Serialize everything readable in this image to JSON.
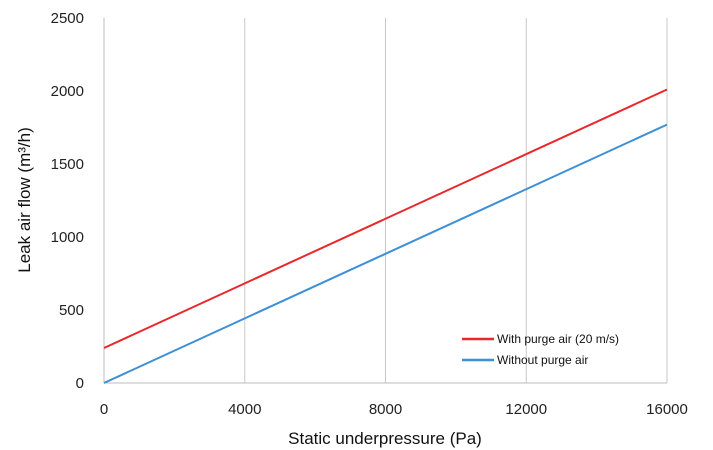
{
  "chart_data": {
    "type": "line",
    "xlabel": "Static underpressure (Pa)",
    "ylabel": "Leak air flow (m³/h)",
    "xlim": [
      0,
      16000
    ],
    "ylim": [
      0,
      2500
    ],
    "x_ticks": [
      0,
      4000,
      8000,
      12000,
      16000
    ],
    "y_ticks": [
      0,
      500,
      1000,
      1500,
      2000,
      2500
    ],
    "x_tick_labels": [
      "0",
      "4000",
      "8000",
      "12000",
      "16000"
    ],
    "y_tick_labels": [
      "0",
      "500",
      "1000",
      "1500",
      "2000",
      "2500"
    ],
    "grid": "vertical",
    "legend_position": "bottom-right",
    "series": [
      {
        "name": "With purge air (20 m/s)",
        "color": "#e8282b",
        "x": [
          0,
          16000
        ],
        "y": [
          240,
          2010
        ]
      },
      {
        "name": "Without purge air",
        "color": "#3d8fd6",
        "x": [
          0,
          16000
        ],
        "y": [
          0,
          1770
        ]
      }
    ]
  }
}
